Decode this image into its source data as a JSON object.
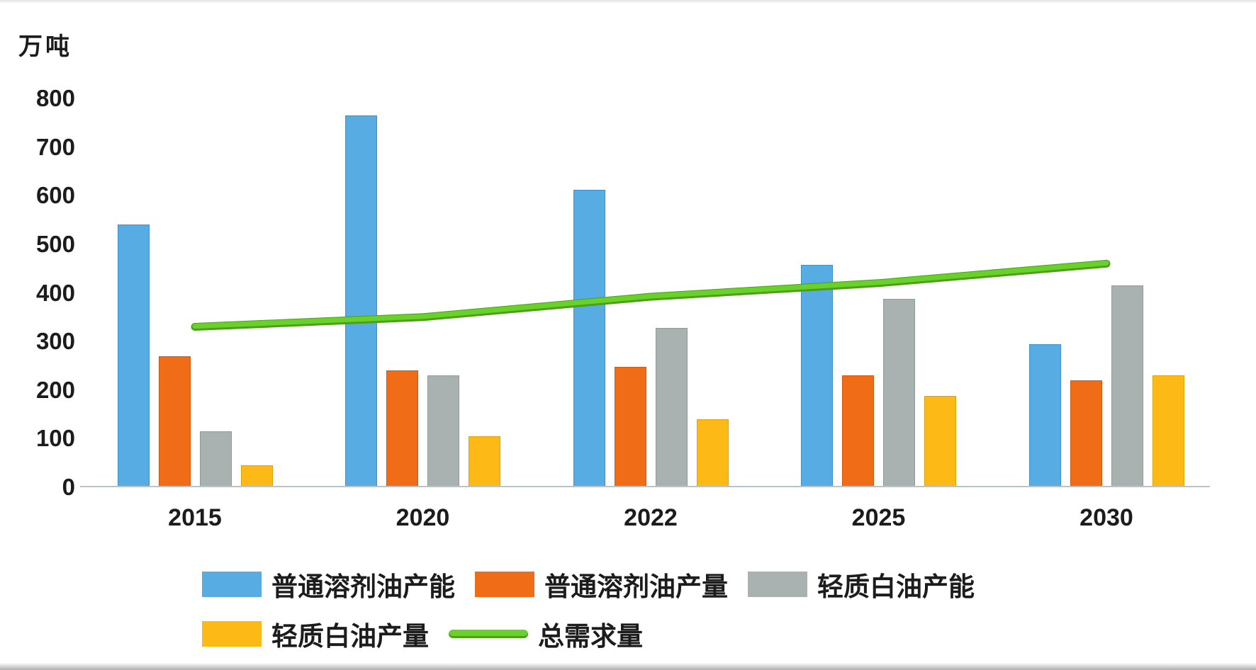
{
  "chart_data": {
    "type": "bar",
    "title": "",
    "unit_label": "万吨",
    "xlabel": "",
    "ylabel": "万吨",
    "categories": [
      "2015",
      "2020",
      "2022",
      "2025",
      "2030"
    ],
    "yticks": [
      0,
      100,
      200,
      300,
      400,
      500,
      600,
      700,
      800
    ],
    "ylim": [
      0,
      800
    ],
    "grid": "off",
    "legend_position": "bottom",
    "axis_color": "#b8c4c6",
    "text_color": "#1c1c1c",
    "series": [
      {
        "name": "普通溶剂油产能",
        "type": "bar",
        "color": "#57ade3",
        "border": "#3e92c9",
        "values": [
          540,
          765,
          612,
          457,
          295
        ]
      },
      {
        "name": "普通溶剂油产量",
        "type": "bar",
        "color": "#f16c16",
        "border": "#d4570b",
        "values": [
          270,
          240,
          248,
          230,
          220
        ]
      },
      {
        "name": "轻质白油产能",
        "type": "bar",
        "color": "#a9b1b1",
        "border": "#8f9a9a",
        "values": [
          115,
          230,
          328,
          388,
          415
        ]
      },
      {
        "name": "轻质白油产量",
        "type": "bar",
        "color": "#fdba16",
        "border": "#e0a008",
        "values": [
          45,
          105,
          140,
          188,
          230
        ]
      },
      {
        "name": "总需求量",
        "type": "line",
        "color": "#68d12c",
        "border": "#4da015",
        "values": [
          330,
          350,
          392,
          420,
          460
        ]
      }
    ],
    "legend_rows": [
      [
        0,
        1,
        2
      ],
      [
        3,
        4
      ]
    ]
  }
}
